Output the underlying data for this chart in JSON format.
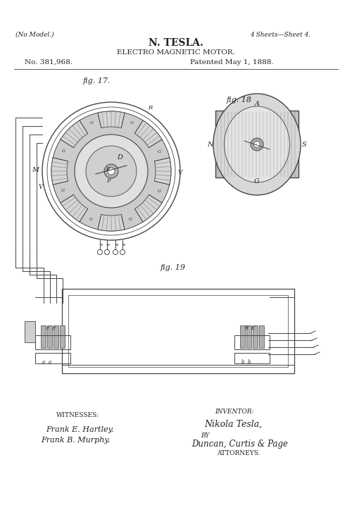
{
  "bg_color": "#ffffff",
  "line_color": "#444444",
  "text_color": "#222222",
  "light_gray": "#cccccc",
  "mid_gray": "#b0b0b0",
  "dark_gray": "#888888",
  "title_line1": "N. TESLA.",
  "title_line2": "ELECTRO MAGNETIC MOTOR.",
  "no_model": "(No Model.)",
  "sheets": "4 Sheets—Sheet 4.",
  "patent_no": "No. 381,968.",
  "patented": "Patented May 1, 1888.",
  "fig17_label": "fig. 17.",
  "fig18_label": "fig. 18",
  "fig19_label": "fig. 19",
  "witnesses_label": "WITNESSES:",
  "witness1": "Frank E. Hartley.",
  "witness2": "Frank B. Murphy.",
  "inventor_label": "INVENTOR:",
  "inventor_name": "Nikola Tesla,",
  "by_text": "BY",
  "attorneys_firm": "Duncan, Curtis & Page",
  "attorneys_label": "ATTORNEYS."
}
